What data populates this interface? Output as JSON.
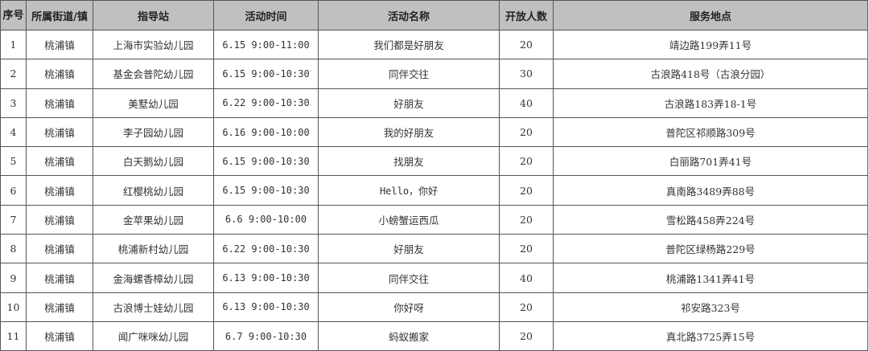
{
  "headers": [
    "序号",
    "所属街道/镇",
    "指导站",
    "活动时间",
    "活动名称",
    "开放人数",
    "服务地点"
  ],
  "rows": [
    [
      "1",
      "桃浦镇",
      "上海市实验幼儿园",
      "6.15 9:00-11:00",
      "我们都是好朋友",
      "20",
      "靖边路199弄11号"
    ],
    [
      "2",
      "桃浦镇",
      "基金会普陀幼儿园",
      "6.15 9:00-10:30",
      "同伴交往",
      "30",
      "古浪路418号（古浪分园）"
    ],
    [
      "3",
      "桃浦镇",
      "美墅幼儿园",
      "6.22 9:00-10:30",
      "好朋友",
      "40",
      "古浪路183弄18-1号"
    ],
    [
      "4",
      "桃浦镇",
      "李子园幼儿园",
      "6.16 9:00-10:00",
      "我的好朋友",
      "20",
      "普陀区祁顺路309号"
    ],
    [
      "5",
      "桃浦镇",
      "白天鹅幼儿园",
      "6.15 9:00-10:30",
      "找朋友",
      "20",
      "白丽路701弄41号"
    ],
    [
      "6",
      "桃浦镇",
      "红樱桃幼儿园",
      "6.15 9:00-10:30",
      "Hello，你好",
      "20",
      "真南路3489弄88号"
    ],
    [
      "7",
      "桃浦镇",
      "金苹果幼儿园",
      "6.6 9:00-10:00",
      "小螃蟹运西瓜",
      "20",
      "雪松路458弄224号"
    ],
    [
      "8",
      "桃浦镇",
      "桃浦新村幼儿园",
      "6.22 9:00-10:30",
      "好朋友",
      "20",
      "普陀区绿杨路229号"
    ],
    [
      "9",
      "桃浦镇",
      "金海螺香樟幼儿园",
      "6.13 9:00-10:30",
      "同伴交往",
      "40",
      "桃浦路1341弄41号"
    ],
    [
      "10",
      "桃浦镇",
      "古浪博士娃幼儿园",
      "6.13 9:00-10:30",
      "你好呀",
      "20",
      "祁安路323号"
    ],
    [
      "11",
      "桃浦镇",
      "闻广咪咪幼儿园",
      "6.7 9:00-10:30",
      "蚂蚁搬家",
      "20",
      "真北路3725弄15号"
    ]
  ],
  "colors": {
    "header_bg": "#c0c0c0",
    "border": "#555555"
  }
}
